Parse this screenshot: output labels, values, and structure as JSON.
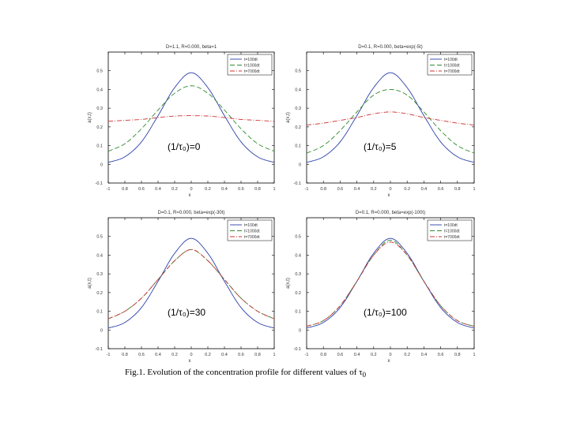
{
  "caption": {
    "prefix": "Fig.1. Evolution of the concentration profile for different values of τ",
    "sub": "0"
  },
  "line_styles": {
    "s1": {
      "color": "#2b3fa8",
      "dash": ""
    },
    "s2": {
      "color": "#2e8b2e",
      "dash": "6,3"
    },
    "s3": {
      "color": "#cc3333",
      "dash": "6,2,1,2"
    }
  },
  "chart_data": [
    {
      "type": "line",
      "title": "D=1.1, R=0.000, beta=1",
      "annotation": "(1/τ₀)=0",
      "xlabel": "x",
      "ylabel": "a(x,t)",
      "xlim": [
        -1,
        1
      ],
      "ylim": [
        -0.1,
        0.6
      ],
      "xticks": [
        -1,
        -0.8,
        -0.6,
        -0.4,
        -0.2,
        0,
        0.2,
        0.4,
        0.6,
        0.8,
        1
      ],
      "xtick_labels": [
        "-1",
        "0.8",
        "0.6",
        "0.4",
        "0.2",
        "0",
        "0.2",
        "0.4",
        "0.6",
        "0.8",
        "1"
      ],
      "yticks": [
        -0.1,
        0,
        0.1,
        0.2,
        0.3,
        0.4,
        0.5
      ],
      "ytick_labels": [
        "-0.1",
        "0",
        "0.1",
        "0.2",
        "0.3",
        "0.4",
        "0.5"
      ],
      "legend": "top-right",
      "x": [
        -1,
        -0.8,
        -0.6,
        -0.4,
        -0.2,
        0,
        0.2,
        0.4,
        0.6,
        0.8,
        1
      ],
      "series": [
        {
          "name": "t=100dt",
          "style": "s1",
          "values": [
            0.01,
            0.04,
            0.12,
            0.26,
            0.41,
            0.49,
            0.41,
            0.26,
            0.12,
            0.04,
            0.01
          ]
        },
        {
          "name": "t=1000dt",
          "style": "s2",
          "values": [
            0.07,
            0.11,
            0.19,
            0.29,
            0.38,
            0.42,
            0.38,
            0.29,
            0.19,
            0.11,
            0.07
          ]
        },
        {
          "name": "t=7000dt",
          "style": "s3",
          "values": [
            0.23,
            0.235,
            0.24,
            0.25,
            0.258,
            0.26,
            0.258,
            0.25,
            0.24,
            0.235,
            0.23
          ]
        }
      ]
    },
    {
      "type": "line",
      "title": "D=0.1, R=0.000, beta=exp(-5t)",
      "annotation": "(1/τ₀)=5",
      "xlabel": "x",
      "ylabel": "a(x,t)",
      "xlim": [
        -1,
        1
      ],
      "ylim": [
        -0.1,
        0.6
      ],
      "xticks": [
        -1,
        -0.8,
        -0.6,
        -0.4,
        -0.2,
        0,
        0.2,
        0.4,
        0.6,
        0.8,
        1
      ],
      "xtick_labels": [
        "-1",
        "0.8",
        "0.6",
        "0.4",
        "0.2",
        "0",
        "0.2",
        "0.4",
        "0.6",
        "0.8",
        "1"
      ],
      "yticks": [
        -0.1,
        0,
        0.1,
        0.2,
        0.3,
        0.4,
        0.5
      ],
      "ytick_labels": [
        "-0.1",
        "0",
        "0.1",
        "0.2",
        "0.3",
        "0.4",
        "0.5"
      ],
      "legend": "top-right",
      "x": [
        -1,
        -0.8,
        -0.6,
        -0.4,
        -0.2,
        0,
        0.2,
        0.4,
        0.6,
        0.8,
        1
      ],
      "series": [
        {
          "name": "t=100dt",
          "style": "s1",
          "values": [
            0.01,
            0.04,
            0.12,
            0.26,
            0.41,
            0.49,
            0.41,
            0.26,
            0.12,
            0.04,
            0.01
          ]
        },
        {
          "name": "t=1000dt",
          "style": "s2",
          "values": [
            0.06,
            0.1,
            0.18,
            0.28,
            0.37,
            0.4,
            0.37,
            0.28,
            0.18,
            0.1,
            0.06
          ]
        },
        {
          "name": "t=7000dt",
          "style": "s3",
          "values": [
            0.21,
            0.22,
            0.235,
            0.25,
            0.27,
            0.28,
            0.27,
            0.25,
            0.235,
            0.22,
            0.21
          ]
        }
      ]
    },
    {
      "type": "line",
      "title": "D=0.1, R=0.000, beta=exp(-30t)",
      "annotation": "(1/τ₀)=30",
      "xlabel": "x",
      "ylabel": "a(x,t)",
      "xlim": [
        -1,
        1
      ],
      "ylim": [
        -0.1,
        0.6
      ],
      "xticks": [
        -1,
        -0.8,
        -0.6,
        -0.4,
        -0.2,
        0,
        0.2,
        0.4,
        0.6,
        0.8,
        1
      ],
      "xtick_labels": [
        "-1",
        "0.8",
        "0.6",
        "0.4",
        "0.2",
        "0",
        "0.2",
        "0.4",
        "0.6",
        "0.8",
        "1"
      ],
      "yticks": [
        -0.1,
        0,
        0.1,
        0.2,
        0.3,
        0.4,
        0.5
      ],
      "ytick_labels": [
        "-0.1",
        "0",
        "0.1",
        "0.2",
        "0.3",
        "0.4",
        "0.5"
      ],
      "legend": "top-right",
      "x": [
        -1,
        -0.8,
        -0.6,
        -0.4,
        -0.2,
        0,
        0.2,
        0.4,
        0.6,
        0.8,
        1
      ],
      "series": [
        {
          "name": "t=100dt",
          "style": "s1",
          "values": [
            0.01,
            0.04,
            0.12,
            0.26,
            0.41,
            0.49,
            0.41,
            0.26,
            0.12,
            0.04,
            0.01
          ]
        },
        {
          "name": "t=1000dt",
          "style": "s2",
          "values": [
            0.06,
            0.1,
            0.17,
            0.27,
            0.37,
            0.43,
            0.37,
            0.27,
            0.17,
            0.1,
            0.06
          ]
        },
        {
          "name": "t=7000dt",
          "style": "s3",
          "values": [
            0.06,
            0.1,
            0.17,
            0.27,
            0.37,
            0.43,
            0.37,
            0.27,
            0.17,
            0.1,
            0.06
          ]
        }
      ]
    },
    {
      "type": "line",
      "title": "D=0.1, R=0.000, beta=exp(-100t)",
      "annotation": "(1/τ₀)=100",
      "xlabel": "x",
      "ylabel": "a(x,t)",
      "xlim": [
        -1,
        1
      ],
      "ylim": [
        -0.1,
        0.6
      ],
      "xticks": [
        -1,
        -0.8,
        -0.6,
        -0.4,
        -0.2,
        0,
        0.2,
        0.4,
        0.6,
        0.8,
        1
      ],
      "xtick_labels": [
        "-1",
        "0.8",
        "0.6",
        "0.4",
        "0.2",
        "0",
        "0.2",
        "0.4",
        "0.6",
        "0.8",
        "1"
      ],
      "yticks": [
        -0.1,
        0,
        0.1,
        0.2,
        0.3,
        0.4,
        0.5
      ],
      "ytick_labels": [
        "-0.1",
        "0",
        "0.1",
        "0.2",
        "0.3",
        "0.4",
        "0.5"
      ],
      "legend": "top-right",
      "x": [
        -1,
        -0.8,
        -0.6,
        -0.4,
        -0.2,
        0,
        0.2,
        0.4,
        0.6,
        0.8,
        1
      ],
      "series": [
        {
          "name": "t=100dt",
          "style": "s1",
          "values": [
            0.01,
            0.04,
            0.12,
            0.26,
            0.41,
            0.49,
            0.41,
            0.26,
            0.12,
            0.04,
            0.01
          ]
        },
        {
          "name": "t=1000dt",
          "style": "s2",
          "values": [
            0.02,
            0.05,
            0.13,
            0.26,
            0.4,
            0.48,
            0.4,
            0.26,
            0.13,
            0.05,
            0.02
          ]
        },
        {
          "name": "t=7000dt",
          "style": "s3",
          "values": [
            0.02,
            0.05,
            0.13,
            0.26,
            0.4,
            0.47,
            0.4,
            0.26,
            0.13,
            0.05,
            0.02
          ]
        }
      ]
    }
  ]
}
